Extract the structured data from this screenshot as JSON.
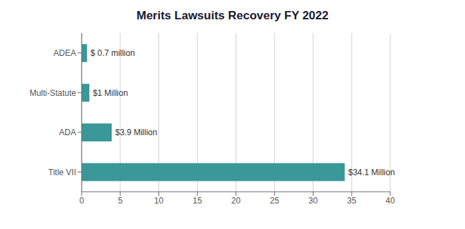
{
  "chart_data": {
    "type": "bar",
    "title": "Merits Lawsuits Recovery FY 2022",
    "orientation": "horizontal",
    "categories": [
      "ADEA",
      "Multi-Statute",
      "ADA",
      "Title VII"
    ],
    "values": [
      0.7,
      1.0,
      3.9,
      34.1
    ],
    "value_labels": [
      "$ 0.7 million",
      "$1 Million",
      "$3.9 Million",
      "$34.1 Million"
    ],
    "data_labels": true,
    "color": "#3a9898",
    "xlim": [
      0,
      40
    ],
    "xticks": [
      0,
      5,
      10,
      15,
      20,
      25,
      30,
      35,
      40
    ],
    "grid": true
  }
}
